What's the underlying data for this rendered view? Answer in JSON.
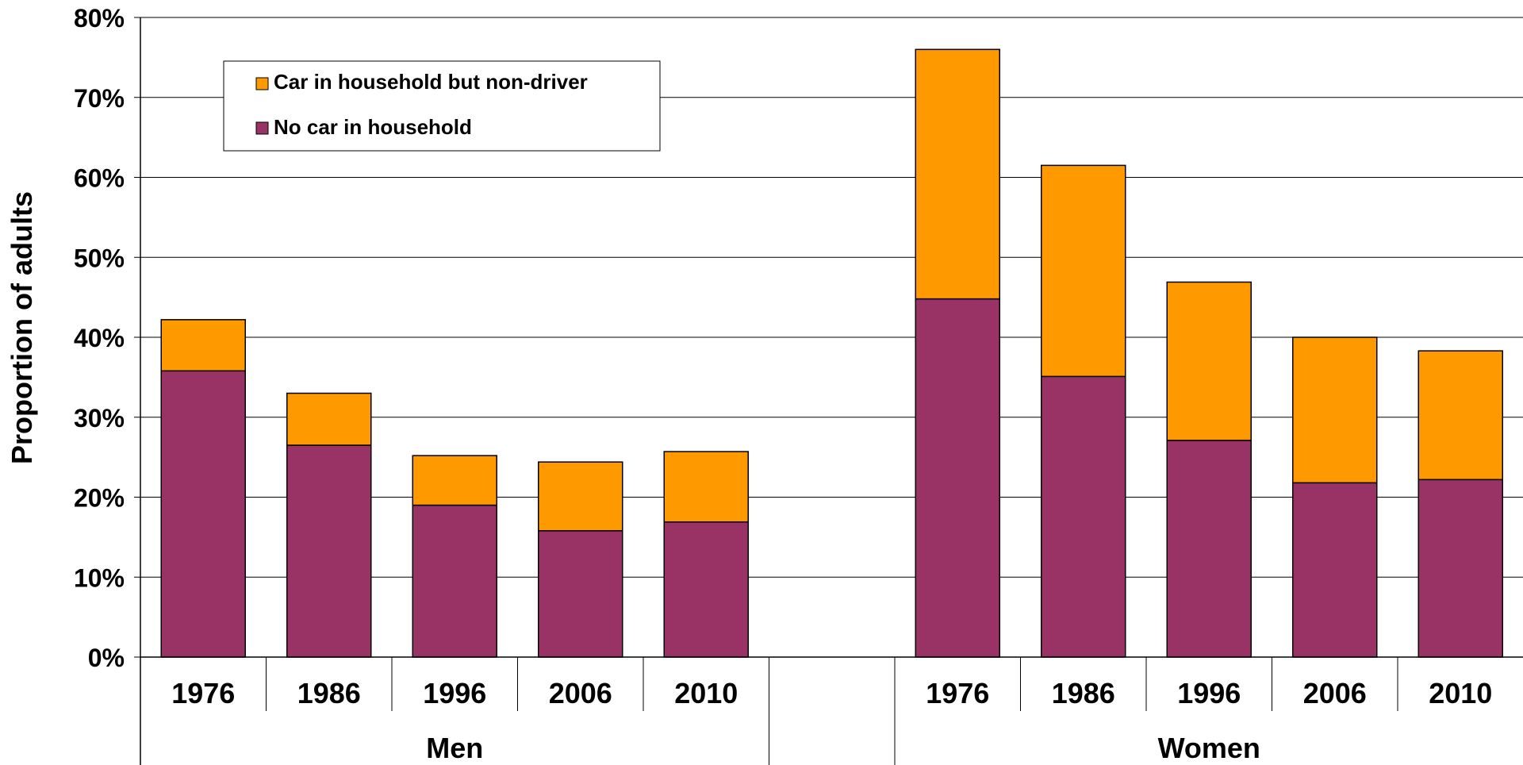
{
  "chart_data": {
    "type": "bar",
    "stacked": true,
    "ylabel": "Proportion of adults",
    "ylim": [
      0,
      80
    ],
    "yticks": [
      "0%",
      "10%",
      "20%",
      "30%",
      "40%",
      "50%",
      "60%",
      "70%",
      "80%"
    ],
    "grid": true,
    "legend_position": "top-left",
    "groups": [
      {
        "name": "Men",
        "categories": [
          "1976",
          "1986",
          "1996",
          "2006",
          "2010"
        ]
      },
      {
        "name": "Women",
        "categories": [
          "1976",
          "1986",
          "1996",
          "2006",
          "2010"
        ]
      }
    ],
    "series": [
      {
        "name": "No car in household",
        "color": "#993366",
        "values": [
          35.8,
          26.5,
          19.0,
          15.8,
          16.9,
          44.8,
          35.1,
          27.1,
          21.8,
          22.2
        ]
      },
      {
        "name": "Car in household but non-driver",
        "color": "#FF9900",
        "values": [
          6.4,
          6.5,
          6.2,
          8.6,
          8.8,
          31.2,
          26.4,
          19.8,
          18.2,
          16.1
        ]
      }
    ],
    "legend_order": [
      "Car in household but non-driver",
      "No car in household"
    ]
  }
}
